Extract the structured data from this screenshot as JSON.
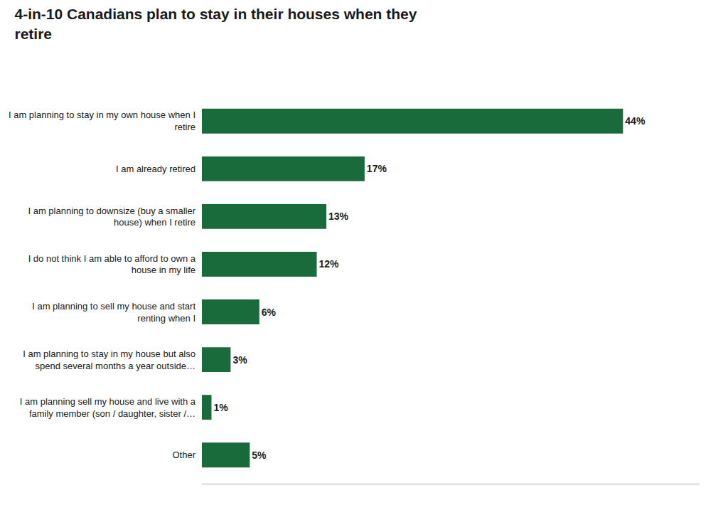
{
  "chart_data": {
    "type": "bar",
    "orientation": "horizontal",
    "title": "4-in-10 Canadians plan to stay in their houses when they\nretire",
    "categories": [
      "Other",
      "I am planning sell my house and live with a\nfamily member (son / daughter, sister /…",
      "I am planning to stay in my house but also\nspend several months a year outside…",
      "I am planning to sell my house and start\nrenting when I",
      "I do not think I am able to afford to own a\nhouse in my life",
      "I am planning to downsize (buy a smaller\nhouse) when I retire",
      "I am already retired",
      "I am planning to stay in my own house when I\nretire"
    ],
    "values": [
      5,
      1,
      3,
      6,
      12,
      13,
      17,
      44
    ],
    "value_labels": [
      "5%",
      "1%",
      "3%",
      "6%",
      "12%",
      "13%",
      "17%",
      "44%"
    ],
    "data_labels": true,
    "color": "#1a6b3c",
    "xlim": [
      0,
      52
    ],
    "grid": false,
    "tick_labels": "y"
  }
}
